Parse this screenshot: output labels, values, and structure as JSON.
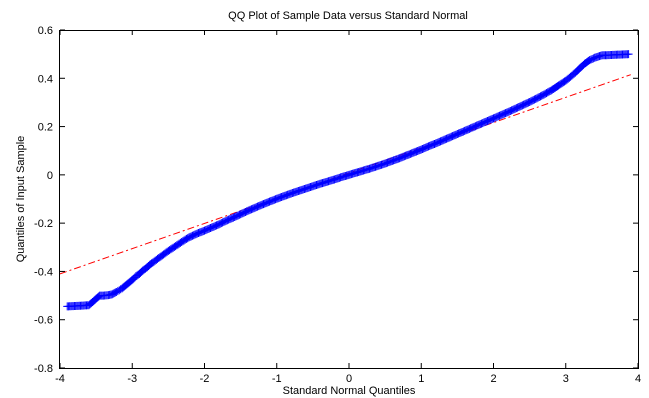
{
  "chart_data": {
    "type": "scatter",
    "title": "QQ Plot of Sample Data versus Standard Normal",
    "xlabel": "Standard Normal Quantiles",
    "ylabel": "Quantiles of Input Sample",
    "xlim": [
      -4,
      4
    ],
    "ylim": [
      -0.8,
      0.6
    ],
    "xticks": [
      -4,
      -3,
      -2,
      -1,
      0,
      1,
      2,
      3,
      4
    ],
    "xtick_labels": [
      "-4",
      "-3",
      "-2",
      "-1",
      "0",
      "1",
      "2",
      "3",
      "4"
    ],
    "yticks": [
      -0.8,
      -0.6,
      -0.4,
      -0.2,
      0,
      0.2,
      0.4,
      0.6
    ],
    "ytick_labels": [
      "-0.8",
      "-0.6",
      "-0.4",
      "-0.2",
      "0",
      "0.2",
      "0.4",
      "0.6"
    ],
    "grid": false,
    "marker": "+",
    "colors": {
      "data": "#0000ff",
      "reference": "#ff0000"
    },
    "series": [
      {
        "points": [
          [
            -3.9,
            -0.545
          ],
          [
            -3.6,
            -0.54
          ],
          [
            -3.45,
            -0.5
          ],
          [
            -3.4,
            -0.5
          ],
          [
            -3.33,
            -0.498
          ],
          [
            -3.28,
            -0.495
          ],
          [
            -3.22,
            -0.485
          ],
          [
            -3.18,
            -0.478
          ],
          [
            -3.14,
            -0.47
          ],
          [
            -3.1,
            -0.46
          ],
          [
            -3.06,
            -0.45
          ],
          [
            -3.02,
            -0.44
          ],
          [
            -2.98,
            -0.43
          ],
          [
            -2.95,
            -0.42
          ],
          [
            -2.9,
            -0.41
          ],
          [
            -2.85,
            -0.395
          ],
          [
            -2.8,
            -0.385
          ],
          [
            -2.75,
            -0.37
          ],
          [
            -2.7,
            -0.36
          ],
          [
            -2.65,
            -0.348
          ],
          [
            -2.6,
            -0.337
          ],
          [
            -2.55,
            -0.326
          ],
          [
            -2.5,
            -0.315
          ],
          [
            -2.45,
            -0.305
          ],
          [
            -2.4,
            -0.295
          ],
          [
            -2.35,
            -0.285
          ],
          [
            -2.3,
            -0.275
          ],
          [
            -2.25,
            -0.265
          ],
          [
            -2.2,
            -0.257
          ],
          [
            -2.15,
            -0.25
          ],
          [
            -2.1,
            -0.243
          ],
          [
            -2.05,
            -0.237
          ],
          [
            -2.0,
            -0.231
          ],
          [
            -1.9,
            -0.218
          ],
          [
            -1.8,
            -0.205
          ],
          [
            -1.7,
            -0.19
          ],
          [
            -1.6,
            -0.177
          ],
          [
            -1.5,
            -0.163
          ],
          [
            -1.4,
            -0.149
          ],
          [
            -1.3,
            -0.136
          ],
          [
            -1.2,
            -0.123
          ],
          [
            -1.1,
            -0.111
          ],
          [
            -1.0,
            -0.099
          ],
          [
            -0.9,
            -0.088
          ],
          [
            -0.8,
            -0.077
          ],
          [
            -0.7,
            -0.067
          ],
          [
            -0.6,
            -0.057
          ],
          [
            -0.5,
            -0.047
          ],
          [
            -0.4,
            -0.037
          ],
          [
            -0.3,
            -0.028
          ],
          [
            -0.2,
            -0.019
          ],
          [
            -0.1,
            -0.009
          ],
          [
            0.0,
            0.0
          ],
          [
            0.1,
            0.009
          ],
          [
            0.2,
            0.018
          ],
          [
            0.3,
            0.027
          ],
          [
            0.4,
            0.037
          ],
          [
            0.5,
            0.047
          ],
          [
            0.6,
            0.058
          ],
          [
            0.7,
            0.069
          ],
          [
            0.8,
            0.081
          ],
          [
            0.9,
            0.093
          ],
          [
            1.0,
            0.105
          ],
          [
            1.1,
            0.118
          ],
          [
            1.2,
            0.13
          ],
          [
            1.3,
            0.143
          ],
          [
            1.4,
            0.156
          ],
          [
            1.5,
            0.169
          ],
          [
            1.6,
            0.182
          ],
          [
            1.7,
            0.195
          ],
          [
            1.8,
            0.208
          ],
          [
            1.9,
            0.221
          ],
          [
            2.0,
            0.234
          ],
          [
            2.1,
            0.247
          ],
          [
            2.2,
            0.26
          ],
          [
            2.3,
            0.274
          ],
          [
            2.4,
            0.288
          ],
          [
            2.5,
            0.302
          ],
          [
            2.6,
            0.317
          ],
          [
            2.7,
            0.333
          ],
          [
            2.8,
            0.35
          ],
          [
            2.9,
            0.37
          ],
          [
            2.95,
            0.38
          ],
          [
            3.0,
            0.39
          ],
          [
            3.05,
            0.402
          ],
          [
            3.1,
            0.415
          ],
          [
            3.15,
            0.428
          ],
          [
            3.2,
            0.443
          ],
          [
            3.26,
            0.46
          ],
          [
            3.33,
            0.475
          ],
          [
            3.4,
            0.485
          ],
          [
            3.45,
            0.49
          ],
          [
            3.5,
            0.495
          ],
          [
            3.6,
            0.496
          ],
          [
            3.87,
            0.5
          ]
        ]
      }
    ],
    "reference_line": {
      "style": "dash-dot",
      "x": [
        -4,
        3.9
      ],
      "y": [
        -0.41,
        0.415
      ]
    }
  }
}
